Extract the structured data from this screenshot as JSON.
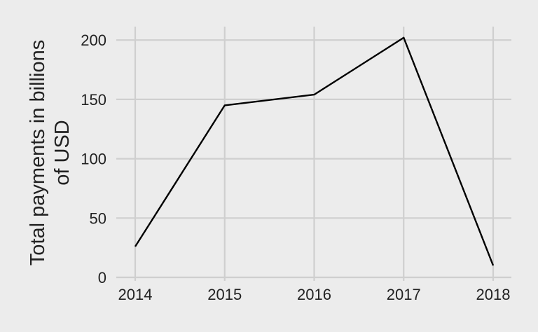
{
  "chart_data": {
    "type": "line",
    "title": "",
    "xlabel": "",
    "ylabel_lines": [
      "Total payments in billions",
      "of USD"
    ],
    "ylim": [
      0,
      210
    ],
    "yticks": [
      0,
      50,
      100,
      150,
      200
    ],
    "ytick_labels": [
      "0",
      "50",
      "100",
      "150",
      "200"
    ],
    "categories": [
      "2014",
      "2015",
      "2016",
      "2017",
      "2018"
    ],
    "series": [
      {
        "name": "Total payments",
        "values": [
          26,
          145,
          154,
          202,
          10
        ]
      }
    ],
    "grid": true,
    "line_color": "#000000",
    "grid_color": "#cfcfcf",
    "background_color": "#ececec"
  }
}
